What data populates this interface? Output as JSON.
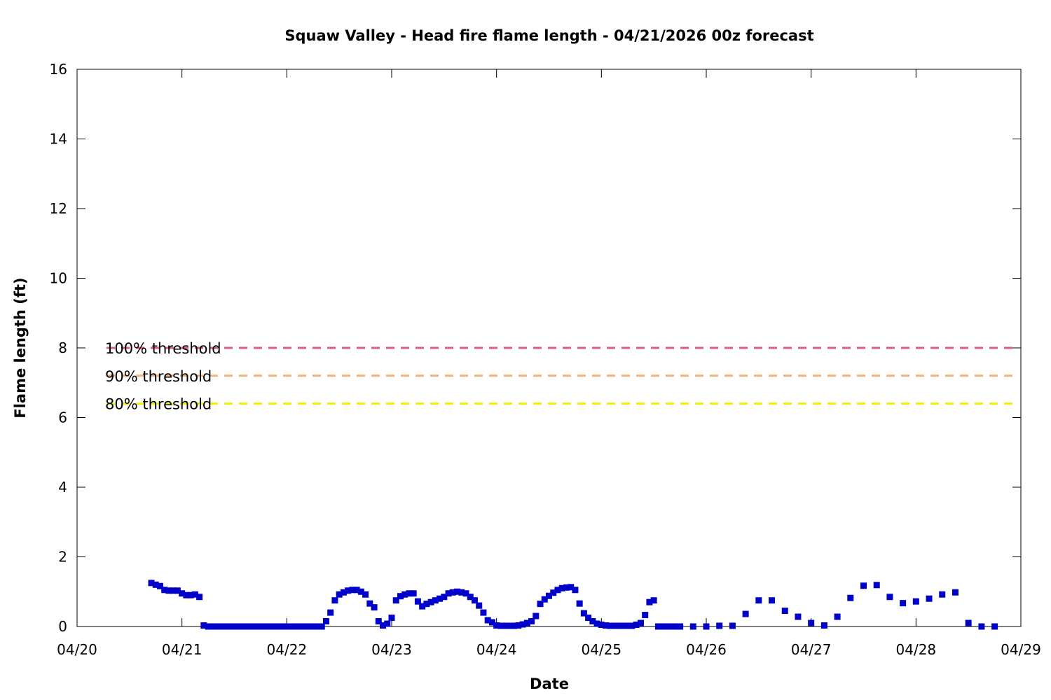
{
  "chart_data": {
    "type": "scatter",
    "title": "Squaw Valley - Head fire flame length - 04/21/2026 00z forecast",
    "xlabel": "Date",
    "ylabel": "Flame length (ft)",
    "x_ticks": [
      "04/20",
      "04/21",
      "04/22",
      "04/23",
      "04/24",
      "04/25",
      "04/26",
      "04/27",
      "04/28",
      "04/29"
    ],
    "xlim": [
      "04/20",
      "04/29"
    ],
    "ylim": [
      0,
      16
    ],
    "y_ticks": [
      "0",
      "2",
      "4",
      "6",
      "8",
      "10",
      "12",
      "14",
      "16"
    ],
    "grid": false,
    "marker_color": "#0000c8",
    "thresholds": [
      {
        "label": "100% threshold",
        "value": 8.0,
        "color": "#d95f7e"
      },
      {
        "label": "90% threshold",
        "value": 7.2,
        "color": "#f5b27a"
      },
      {
        "label": "80% threshold",
        "value": 6.4,
        "color": "#f2f000"
      }
    ],
    "series": [
      {
        "points": [
          [
            "04/20 17:00",
            1.25
          ],
          [
            "04/20 18:00",
            1.2
          ],
          [
            "04/20 19:00",
            1.16
          ],
          [
            "04/20 20:00",
            1.05
          ],
          [
            "04/20 21:00",
            1.03
          ],
          [
            "04/20 22:00",
            1.03
          ],
          [
            "04/20 23:00",
            1.03
          ],
          [
            "04/21 00:00",
            0.95
          ],
          [
            "04/21 01:00",
            0.9
          ],
          [
            "04/21 02:00",
            0.9
          ],
          [
            "04/21 03:00",
            0.92
          ],
          [
            "04/21 04:00",
            0.85
          ],
          [
            "04/21 05:00",
            0.03
          ],
          [
            "04/21 06:00",
            0.0
          ],
          [
            "04/21 07:00",
            0.0
          ],
          [
            "04/21 08:00",
            0.0
          ],
          [
            "04/21 09:00",
            0.0
          ],
          [
            "04/21 10:00",
            0.0
          ],
          [
            "04/21 11:00",
            0.0
          ],
          [
            "04/21 12:00",
            0.0
          ],
          [
            "04/21 13:00",
            0.0
          ],
          [
            "04/21 14:00",
            0.0
          ],
          [
            "04/21 15:00",
            0.0
          ],
          [
            "04/21 16:00",
            0.0
          ],
          [
            "04/21 17:00",
            0.0
          ],
          [
            "04/21 18:00",
            0.0
          ],
          [
            "04/21 19:00",
            0.0
          ],
          [
            "04/21 20:00",
            0.0
          ],
          [
            "04/21 21:00",
            0.0
          ],
          [
            "04/21 22:00",
            0.0
          ],
          [
            "04/21 23:00",
            0.0
          ],
          [
            "04/22 00:00",
            0.0
          ],
          [
            "04/22 01:00",
            0.0
          ],
          [
            "04/22 02:00",
            0.0
          ],
          [
            "04/22 03:00",
            0.0
          ],
          [
            "04/22 04:00",
            0.0
          ],
          [
            "04/22 05:00",
            0.0
          ],
          [
            "04/22 06:00",
            0.0
          ],
          [
            "04/22 07:00",
            0.0
          ],
          [
            "04/22 08:00",
            0.0
          ],
          [
            "04/22 09:00",
            0.15
          ],
          [
            "04/22 10:00",
            0.4
          ],
          [
            "04/22 11:00",
            0.75
          ],
          [
            "04/22 12:00",
            0.92
          ],
          [
            "04/22 13:00",
            0.98
          ],
          [
            "04/22 14:00",
            1.03
          ],
          [
            "04/22 15:00",
            1.05
          ],
          [
            "04/22 16:00",
            1.05
          ],
          [
            "04/22 17:00",
            1.0
          ],
          [
            "04/22 18:00",
            0.92
          ],
          [
            "04/22 19:00",
            0.66
          ],
          [
            "04/22 20:00",
            0.55
          ],
          [
            "04/22 21:00",
            0.15
          ],
          [
            "04/22 22:00",
            0.03
          ],
          [
            "04/22 23:00",
            0.08
          ],
          [
            "04/23 00:00",
            0.25
          ],
          [
            "04/23 01:00",
            0.75
          ],
          [
            "04/23 02:00",
            0.87
          ],
          [
            "04/23 03:00",
            0.92
          ],
          [
            "04/23 04:00",
            0.95
          ],
          [
            "04/23 05:00",
            0.95
          ],
          [
            "04/23 06:00",
            0.72
          ],
          [
            "04/23 07:00",
            0.58
          ],
          [
            "04/23 08:00",
            0.65
          ],
          [
            "04/23 09:00",
            0.7
          ],
          [
            "04/23 10:00",
            0.75
          ],
          [
            "04/23 11:00",
            0.8
          ],
          [
            "04/23 12:00",
            0.85
          ],
          [
            "04/23 13:00",
            0.95
          ],
          [
            "04/23 14:00",
            0.98
          ],
          [
            "04/23 15:00",
            1.0
          ],
          [
            "04/23 16:00",
            0.98
          ],
          [
            "04/23 17:00",
            0.95
          ],
          [
            "04/23 18:00",
            0.85
          ],
          [
            "04/23 19:00",
            0.75
          ],
          [
            "04/23 20:00",
            0.6
          ],
          [
            "04/23 21:00",
            0.4
          ],
          [
            "04/23 22:00",
            0.18
          ],
          [
            "04/23 23:00",
            0.12
          ],
          [
            "04/24 00:00",
            0.03
          ],
          [
            "04/24 01:00",
            0.02
          ],
          [
            "04/24 02:00",
            0.02
          ],
          [
            "04/24 03:00",
            0.02
          ],
          [
            "04/24 04:00",
            0.02
          ],
          [
            "04/24 05:00",
            0.03
          ],
          [
            "04/24 06:00",
            0.06
          ],
          [
            "04/24 07:00",
            0.1
          ],
          [
            "04/24 08:00",
            0.15
          ],
          [
            "04/24 09:00",
            0.3
          ],
          [
            "04/24 10:00",
            0.65
          ],
          [
            "04/24 11:00",
            0.78
          ],
          [
            "04/24 12:00",
            0.88
          ],
          [
            "04/24 13:00",
            0.97
          ],
          [
            "04/24 14:00",
            1.05
          ],
          [
            "04/24 15:00",
            1.1
          ],
          [
            "04/24 16:00",
            1.12
          ],
          [
            "04/24 17:00",
            1.13
          ],
          [
            "04/24 18:00",
            1.05
          ],
          [
            "04/24 19:00",
            0.66
          ],
          [
            "04/24 20:00",
            0.38
          ],
          [
            "04/24 21:00",
            0.25
          ],
          [
            "04/24 22:00",
            0.15
          ],
          [
            "04/24 23:00",
            0.08
          ],
          [
            "04/25 00:00",
            0.05
          ],
          [
            "04/25 01:00",
            0.03
          ],
          [
            "04/25 02:00",
            0.02
          ],
          [
            "04/25 03:00",
            0.02
          ],
          [
            "04/25 04:00",
            0.02
          ],
          [
            "04/25 05:00",
            0.02
          ],
          [
            "04/25 06:00",
            0.02
          ],
          [
            "04/25 07:00",
            0.02
          ],
          [
            "04/25 08:00",
            0.05
          ],
          [
            "04/25 09:00",
            0.1
          ],
          [
            "04/25 10:00",
            0.33
          ],
          [
            "04/25 11:00",
            0.7
          ],
          [
            "04/25 12:00",
            0.75
          ],
          [
            "04/25 13:00",
            0.0
          ],
          [
            "04/25 14:00",
            0.0
          ],
          [
            "04/25 15:00",
            0.0
          ],
          [
            "04/25 16:00",
            0.0
          ],
          [
            "04/25 17:00",
            0.0
          ],
          [
            "04/25 18:00",
            0.0
          ],
          [
            "04/25 21:00",
            0.0
          ],
          [
            "04/26 00:00",
            0.0
          ],
          [
            "04/26 03:00",
            0.02
          ],
          [
            "04/26 06:00",
            0.02
          ],
          [
            "04/26 09:00",
            0.36
          ],
          [
            "04/26 12:00",
            0.75
          ],
          [
            "04/26 15:00",
            0.75
          ],
          [
            "04/26 18:00",
            0.45
          ],
          [
            "04/26 21:00",
            0.28
          ],
          [
            "04/27 00:00",
            0.1
          ],
          [
            "04/27 03:00",
            0.03
          ],
          [
            "04/27 06:00",
            0.28
          ],
          [
            "04/27 09:00",
            0.82
          ],
          [
            "04/27 12:00",
            1.17
          ],
          [
            "04/27 15:00",
            1.19
          ],
          [
            "04/27 18:00",
            0.85
          ],
          [
            "04/27 21:00",
            0.67
          ],
          [
            "04/28 00:00",
            0.72
          ],
          [
            "04/28 03:00",
            0.8
          ],
          [
            "04/28 06:00",
            0.92
          ],
          [
            "04/28 09:00",
            0.98
          ],
          [
            "04/28 12:00",
            0.1
          ],
          [
            "04/28 15:00",
            0.0
          ],
          [
            "04/28 18:00",
            0.0
          ]
        ]
      }
    ]
  }
}
